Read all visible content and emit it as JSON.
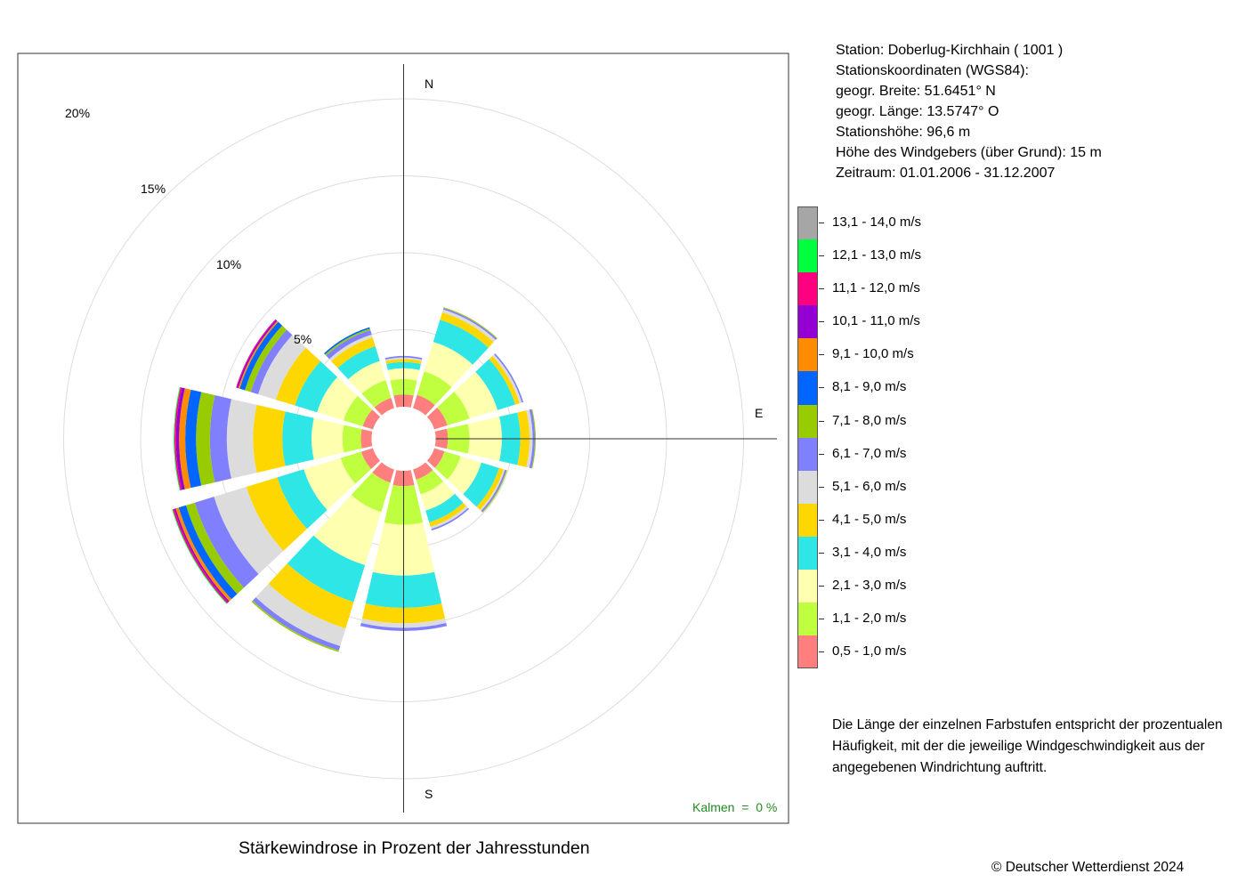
{
  "station": {
    "line1": "Station:  Doberlug-Kirchhain  ( 1001 )",
    "line2": "Stationskoordinaten (WGS84):",
    "line3": "geogr. Breite: 51.6451° N",
    "line4": "geogr. Länge: 13.5747° O",
    "line5": "Stationshöhe: 96,6 m",
    "line6": "Höhe des Windgebers (über Grund): 15 m",
    "line7": "Zeitraum: 01.01.2006 - 31.12.2007"
  },
  "legend": [
    {
      "label": "13,1 - 14,0 m/s",
      "color": "#a6a6a6"
    },
    {
      "label": "12,1 - 13,0 m/s",
      "color": "#00ff3f"
    },
    {
      "label": "11,1 - 12,0 m/s",
      "color": "#ff0080"
    },
    {
      "label": "10,1 - 11,0 m/s",
      "color": "#9400d3"
    },
    {
      "label": "9,1 - 10,0 m/s",
      "color": "#ff8c00"
    },
    {
      "label": "8,1 - 9,0 m/s",
      "color": "#0066ff"
    },
    {
      "label": "7,1 - 8,0 m/s",
      "color": "#99cc00"
    },
    {
      "label": "6,1 - 7,0 m/s",
      "color": "#8080ff"
    },
    {
      "label": "5,1 - 6,0 m/s",
      "color": "#dcdcdc"
    },
    {
      "label": "4,1 - 5,0 m/s",
      "color": "#ffd700"
    },
    {
      "label": "3,1 - 4,0 m/s",
      "color": "#2ee6e6"
    },
    {
      "label": "2,1 - 3,0 m/s",
      "color": "#ffffb0"
    },
    {
      "label": "1,1 - 2,0 m/s",
      "color": "#bfff40"
    },
    {
      "label": "0,5 - 1,0 m/s",
      "color": "#ff7f7f"
    }
  ],
  "note": "Die Länge der einzelnen Farbstufen entspricht der prozentualen Häufigkeit, mit der die jeweilige Windgeschwindigkeit aus der angegebenen Windrichtung auftritt.",
  "title": "Stärkewindrose in Prozent der Jahresstunden",
  "calm": "Kalmen  =  0 %",
  "copyright": "© Deutscher Wetterdienst  2024",
  "chart_data": {
    "type": "wind-rose",
    "unit": "%",
    "ring_labels": [
      "5%",
      "10%",
      "15%",
      "20%"
    ],
    "rings": [
      5,
      10,
      15,
      20
    ],
    "compass": {
      "N": "N",
      "E": "E",
      "S": "S"
    },
    "speed_classes": [
      "0,5 - 1,0 m/s",
      "1,1 - 2,0 m/s",
      "2,1 - 3,0 m/s",
      "3,1 - 4,0 m/s",
      "4,1 - 5,0 m/s",
      "5,1 - 6,0 m/s",
      "6,1 - 7,0 m/s",
      "7,1 - 8,0 m/s",
      "8,1 - 9,0 m/s",
      "9,1 - 10,0 m/s",
      "10,1 - 11,0 m/s",
      "11,1 - 12,0 m/s",
      "12,1 - 13,0 m/s",
      "13,1 - 14,0 m/s"
    ],
    "directions_deg": [
      0,
      30,
      60,
      90,
      120,
      150,
      180,
      210,
      240,
      270,
      300,
      330
    ],
    "sector_width_deg": 26,
    "series": [
      {
        "direction": 0,
        "values": [
          0.8,
          1.0,
          0.7,
          0.4,
          0.2,
          0.1,
          0.1,
          0,
          0,
          0,
          0,
          0,
          0,
          0
        ]
      },
      {
        "direction": 30,
        "values": [
          0.9,
          1.6,
          2.0,
          1.5,
          0.5,
          0.2,
          0.1,
          0.05,
          0,
          0,
          0,
          0,
          0,
          0
        ]
      },
      {
        "direction": 60,
        "values": [
          0.9,
          1.5,
          1.9,
          1.2,
          0.3,
          0.15,
          0.1,
          0,
          0,
          0,
          0,
          0,
          0,
          0
        ]
      },
      {
        "direction": 90,
        "values": [
          0.8,
          1.4,
          2.1,
          1.2,
          0.6,
          0.2,
          0.15,
          0.05,
          0,
          0,
          0,
          0,
          0,
          0
        ]
      },
      {
        "direction": 120,
        "values": [
          0.7,
          1.1,
          1.4,
          1.2,
          0.3,
          0.1,
          0.1,
          0.05,
          0,
          0,
          0,
          0,
          0,
          0
        ]
      },
      {
        "direction": 150,
        "values": [
          0.7,
          1.0,
          1.1,
          0.8,
          0.3,
          0.15,
          0.1,
          0,
          0,
          0,
          0,
          0,
          0,
          0
        ]
      },
      {
        "direction": 180,
        "values": [
          1.0,
          2.5,
          3.3,
          2.1,
          1.0,
          0.3,
          0.2,
          0,
          0,
          0,
          0,
          0,
          0,
          0
        ]
      },
      {
        "direction": 210,
        "values": [
          0.9,
          2.0,
          3.6,
          2.5,
          1.8,
          1.2,
          0.3,
          0.1,
          0,
          0,
          0,
          0,
          0,
          0
        ]
      },
      {
        "direction": 240,
        "values": [
          0.8,
          1.4,
          2.5,
          1.8,
          2.1,
          2.2,
          1.3,
          0.6,
          0.5,
          0.2,
          0.1,
          0.1,
          0.05,
          0
        ]
      },
      {
        "direction": 270,
        "values": [
          0.7,
          1.2,
          2.0,
          1.9,
          1.9,
          1.7,
          1.1,
          0.9,
          0.7,
          0.4,
          0.2,
          0.1,
          0.05,
          0
        ]
      },
      {
        "direction": 300,
        "values": [
          0.7,
          1.3,
          1.8,
          1.5,
          1.3,
          1.2,
          0.5,
          0.4,
          0.35,
          0.1,
          0.1,
          0.05,
          0,
          0
        ]
      },
      {
        "direction": 330,
        "values": [
          0.7,
          1.2,
          1.3,
          1.0,
          0.6,
          0.2,
          0.3,
          0.1,
          0.1,
          0,
          0,
          0,
          0,
          0
        ]
      }
    ]
  }
}
